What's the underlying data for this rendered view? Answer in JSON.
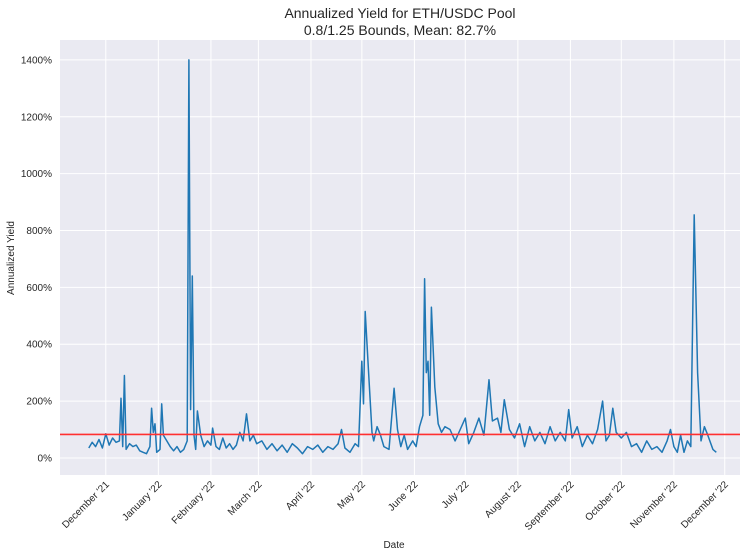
{
  "chart_data": {
    "type": "line",
    "title": "Annualized Yield for ETH/USDC Pool",
    "subtitle": "0.8/1.25 Bounds, Mean: 82.7%",
    "xlabel": "Date",
    "ylabel": "Annualized Yield",
    "xlim": [
      "2021-11-04",
      "2022-12-10"
    ],
    "ylim": [
      -60,
      1470
    ],
    "grid": true,
    "y_ticks": [
      0,
      200,
      400,
      600,
      800,
      1000,
      1200,
      1400
    ],
    "y_tick_labels": [
      "0%",
      "200%",
      "400%",
      "600%",
      "800%",
      "1000%",
      "1200%",
      "1400%"
    ],
    "x_ticks": [
      "2021-12-01",
      "2022-01-01",
      "2022-02-01",
      "2022-03-01",
      "2022-04-01",
      "2022-05-01",
      "2022-06-01",
      "2022-07-01",
      "2022-08-01",
      "2022-09-01",
      "2022-10-01",
      "2022-11-01",
      "2022-12-01"
    ],
    "x_tick_labels": [
      "December '21",
      "January '22",
      "February '22",
      "March '22",
      "April '22",
      "May '22",
      "June '22",
      "July '22",
      "August '22",
      "September '22",
      "October '22",
      "November '22",
      "December '22"
    ],
    "mean_line": {
      "value": 82.7,
      "color": "#ff3030"
    },
    "series": [
      {
        "name": "Annualized Yield",
        "color": "#1f77b4",
        "points": [
          [
            "2021-11-21",
            35
          ],
          [
            "2021-11-23",
            55
          ],
          [
            "2021-11-25",
            40
          ],
          [
            "2021-11-27",
            65
          ],
          [
            "2021-11-29",
            35
          ],
          [
            "2021-12-01",
            85
          ],
          [
            "2021-12-03",
            45
          ],
          [
            "2021-12-05",
            70
          ],
          [
            "2021-12-07",
            55
          ],
          [
            "2021-12-09",
            60
          ],
          [
            "2021-12-10",
            210
          ],
          [
            "2021-12-11",
            40
          ],
          [
            "2021-12-12",
            290
          ],
          [
            "2021-12-13",
            30
          ],
          [
            "2021-12-15",
            50
          ],
          [
            "2021-12-17",
            40
          ],
          [
            "2021-12-19",
            45
          ],
          [
            "2021-12-21",
            25
          ],
          [
            "2021-12-23",
            20
          ],
          [
            "2021-12-25",
            15
          ],
          [
            "2021-12-27",
            40
          ],
          [
            "2021-12-28",
            175
          ],
          [
            "2021-12-29",
            90
          ],
          [
            "2021-12-30",
            120
          ],
          [
            "2021-12-31",
            20
          ],
          [
            "2022-01-02",
            30
          ],
          [
            "2022-01-03",
            190
          ],
          [
            "2022-01-04",
            80
          ],
          [
            "2022-01-06",
            60
          ],
          [
            "2022-01-08",
            40
          ],
          [
            "2022-01-10",
            25
          ],
          [
            "2022-01-12",
            40
          ],
          [
            "2022-01-14",
            20
          ],
          [
            "2022-01-16",
            30
          ],
          [
            "2022-01-18",
            60
          ],
          [
            "2022-01-19",
            1400
          ],
          [
            "2022-01-20",
            170
          ],
          [
            "2022-01-21",
            640
          ],
          [
            "2022-01-22",
            80
          ],
          [
            "2022-01-23",
            30
          ],
          [
            "2022-01-24",
            165
          ],
          [
            "2022-01-26",
            80
          ],
          [
            "2022-01-28",
            40
          ],
          [
            "2022-01-30",
            60
          ],
          [
            "2022-02-01",
            45
          ],
          [
            "2022-02-02",
            105
          ],
          [
            "2022-02-04",
            40
          ],
          [
            "2022-02-06",
            30
          ],
          [
            "2022-02-08",
            70
          ],
          [
            "2022-02-10",
            35
          ],
          [
            "2022-02-12",
            50
          ],
          [
            "2022-02-14",
            30
          ],
          [
            "2022-02-16",
            45
          ],
          [
            "2022-02-18",
            90
          ],
          [
            "2022-02-20",
            60
          ],
          [
            "2022-02-22",
            155
          ],
          [
            "2022-02-24",
            60
          ],
          [
            "2022-02-26",
            80
          ],
          [
            "2022-02-28",
            50
          ],
          [
            "2022-03-03",
            60
          ],
          [
            "2022-03-06",
            30
          ],
          [
            "2022-03-09",
            50
          ],
          [
            "2022-03-12",
            25
          ],
          [
            "2022-03-15",
            45
          ],
          [
            "2022-03-18",
            20
          ],
          [
            "2022-03-21",
            50
          ],
          [
            "2022-03-24",
            35
          ],
          [
            "2022-03-27",
            15
          ],
          [
            "2022-03-30",
            40
          ],
          [
            "2022-04-02",
            30
          ],
          [
            "2022-04-05",
            45
          ],
          [
            "2022-04-08",
            20
          ],
          [
            "2022-04-11",
            40
          ],
          [
            "2022-04-14",
            30
          ],
          [
            "2022-04-17",
            50
          ],
          [
            "2022-04-19",
            100
          ],
          [
            "2022-04-21",
            35
          ],
          [
            "2022-04-24",
            20
          ],
          [
            "2022-04-27",
            50
          ],
          [
            "2022-04-29",
            40
          ],
          [
            "2022-05-01",
            340
          ],
          [
            "2022-05-02",
            190
          ],
          [
            "2022-05-03",
            515
          ],
          [
            "2022-05-05",
            300
          ],
          [
            "2022-05-07",
            90
          ],
          [
            "2022-05-08",
            60
          ],
          [
            "2022-05-10",
            110
          ],
          [
            "2022-05-12",
            80
          ],
          [
            "2022-05-14",
            40
          ],
          [
            "2022-05-17",
            30
          ],
          [
            "2022-05-20",
            245
          ],
          [
            "2022-05-22",
            100
          ],
          [
            "2022-05-24",
            40
          ],
          [
            "2022-05-26",
            80
          ],
          [
            "2022-05-28",
            30
          ],
          [
            "2022-05-31",
            60
          ],
          [
            "2022-06-02",
            40
          ],
          [
            "2022-06-04",
            110
          ],
          [
            "2022-06-06",
            150
          ],
          [
            "2022-06-07",
            630
          ],
          [
            "2022-06-08",
            300
          ],
          [
            "2022-06-09",
            340
          ],
          [
            "2022-06-10",
            150
          ],
          [
            "2022-06-11",
            530
          ],
          [
            "2022-06-13",
            250
          ],
          [
            "2022-06-15",
            120
          ],
          [
            "2022-06-17",
            90
          ],
          [
            "2022-06-19",
            110
          ],
          [
            "2022-06-22",
            100
          ],
          [
            "2022-06-25",
            60
          ],
          [
            "2022-06-28",
            100
          ],
          [
            "2022-07-01",
            140
          ],
          [
            "2022-07-03",
            50
          ],
          [
            "2022-07-06",
            90
          ],
          [
            "2022-07-09",
            140
          ],
          [
            "2022-07-12",
            80
          ],
          [
            "2022-07-15",
            275
          ],
          [
            "2022-07-17",
            130
          ],
          [
            "2022-07-20",
            140
          ],
          [
            "2022-07-22",
            90
          ],
          [
            "2022-07-24",
            205
          ],
          [
            "2022-07-27",
            100
          ],
          [
            "2022-07-30",
            70
          ],
          [
            "2022-08-02",
            120
          ],
          [
            "2022-08-05",
            40
          ],
          [
            "2022-08-08",
            110
          ],
          [
            "2022-08-11",
            60
          ],
          [
            "2022-08-14",
            90
          ],
          [
            "2022-08-17",
            50
          ],
          [
            "2022-08-20",
            110
          ],
          [
            "2022-08-23",
            60
          ],
          [
            "2022-08-26",
            90
          ],
          [
            "2022-08-29",
            60
          ],
          [
            "2022-08-31",
            170
          ],
          [
            "2022-09-02",
            70
          ],
          [
            "2022-09-05",
            110
          ],
          [
            "2022-09-08",
            40
          ],
          [
            "2022-09-11",
            80
          ],
          [
            "2022-09-14",
            50
          ],
          [
            "2022-09-17",
            100
          ],
          [
            "2022-09-20",
            200
          ],
          [
            "2022-09-22",
            60
          ],
          [
            "2022-09-24",
            80
          ],
          [
            "2022-09-26",
            175
          ],
          [
            "2022-09-28",
            90
          ],
          [
            "2022-10-01",
            70
          ],
          [
            "2022-10-04",
            90
          ],
          [
            "2022-10-07",
            40
          ],
          [
            "2022-10-10",
            50
          ],
          [
            "2022-10-13",
            20
          ],
          [
            "2022-10-16",
            60
          ],
          [
            "2022-10-19",
            30
          ],
          [
            "2022-10-22",
            40
          ],
          [
            "2022-10-25",
            20
          ],
          [
            "2022-10-28",
            60
          ],
          [
            "2022-10-30",
            100
          ],
          [
            "2022-11-01",
            40
          ],
          [
            "2022-11-03",
            20
          ],
          [
            "2022-11-05",
            80
          ],
          [
            "2022-11-07",
            20
          ],
          [
            "2022-11-09",
            60
          ],
          [
            "2022-11-11",
            40
          ],
          [
            "2022-11-13",
            855
          ],
          [
            "2022-11-15",
            300
          ],
          [
            "2022-11-17",
            60
          ],
          [
            "2022-11-19",
            110
          ],
          [
            "2022-11-21",
            80
          ],
          [
            "2022-11-24",
            30
          ],
          [
            "2022-11-26",
            20
          ]
        ]
      }
    ]
  }
}
